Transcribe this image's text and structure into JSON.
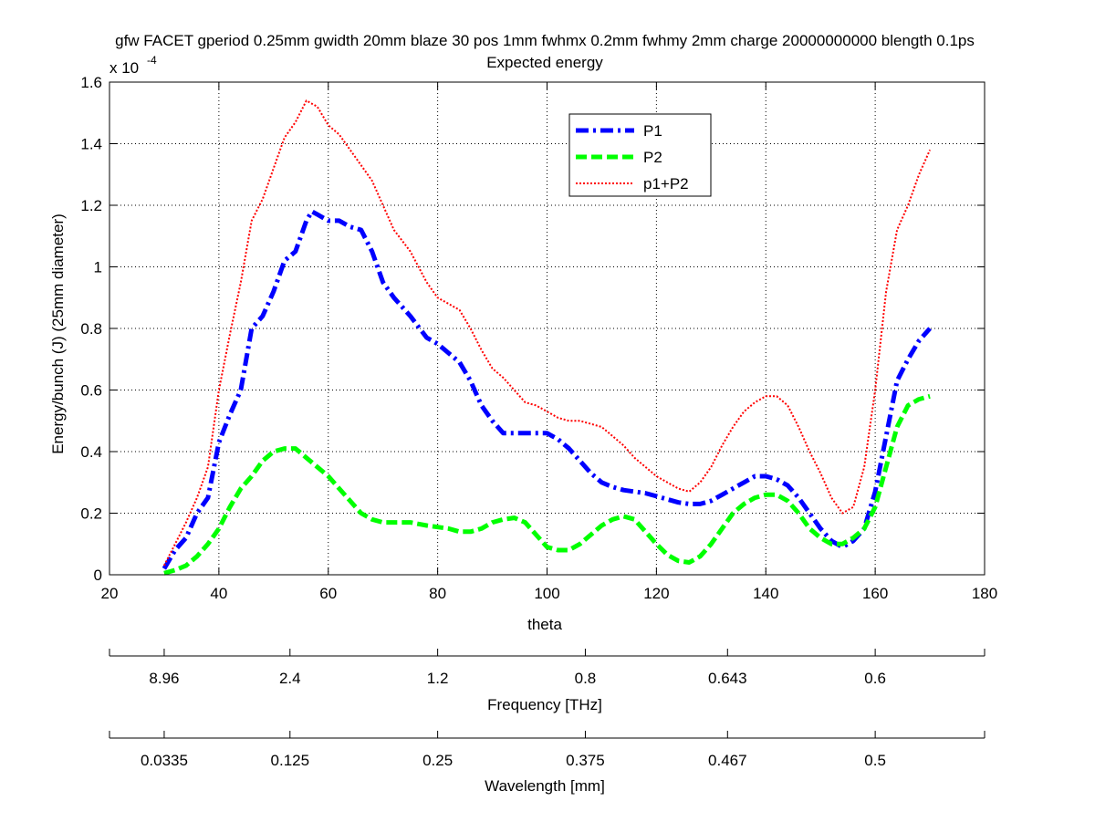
{
  "chart_data": {
    "type": "line",
    "title": "gfw FACET gperiod 0.25mm gwidth 20mm blaze 30 pos 1mm fwhmx 0.2mm fwhmy 2mm charge 20000000000 blength 0.1ps",
    "subtitle": "Expected energy",
    "xlabel": "theta",
    "ylabel": "Energy/bunch (J) (25mm diameter)",
    "y_multiplier_base": "x 10",
    "y_multiplier_exp": "-4",
    "xlim": [
      20,
      180
    ],
    "ylim": [
      0,
      1.6
    ],
    "xticks": [
      20,
      40,
      60,
      80,
      100,
      120,
      140,
      160,
      180
    ],
    "yticks": [
      0,
      0.2,
      0.4,
      0.6,
      0.8,
      1,
      1.2,
      1.4,
      1.6
    ],
    "ytick_labels": [
      "0",
      "0.2",
      "0.4",
      "0.6",
      "0.8",
      "1",
      "1.2",
      "1.4",
      "1.6"
    ],
    "grid": true,
    "legend_position": "top-center",
    "series": [
      {
        "name": "P1",
        "color": "#0000ff",
        "style": "dashdot",
        "x": [
          30,
          32,
          34,
          36,
          38,
          40,
          42,
          44,
          46,
          48,
          50,
          52,
          54,
          56,
          57,
          58,
          60,
          62,
          64,
          66,
          68,
          70,
          72,
          75,
          78,
          80,
          82,
          84,
          86,
          88,
          90,
          92,
          94,
          96,
          98,
          100,
          102,
          104,
          106,
          108,
          110,
          112,
          114,
          116,
          118,
          120,
          122,
          124,
          126,
          128,
          130,
          132,
          134,
          136,
          138,
          140,
          142,
          144,
          146,
          148,
          150,
          152,
          154,
          156,
          158,
          160,
          162,
          164,
          166,
          168,
          170
        ],
        "y": [
          0.02,
          0.08,
          0.12,
          0.2,
          0.25,
          0.43,
          0.52,
          0.6,
          0.8,
          0.84,
          0.92,
          1.02,
          1.05,
          1.15,
          1.18,
          1.17,
          1.15,
          1.15,
          1.13,
          1.12,
          1.05,
          0.95,
          0.9,
          0.84,
          0.77,
          0.75,
          0.72,
          0.69,
          0.63,
          0.55,
          0.5,
          0.46,
          0.46,
          0.46,
          0.46,
          0.46,
          0.44,
          0.41,
          0.37,
          0.33,
          0.3,
          0.285,
          0.275,
          0.27,
          0.265,
          0.255,
          0.245,
          0.235,
          0.23,
          0.23,
          0.24,
          0.26,
          0.28,
          0.3,
          0.32,
          0.32,
          0.31,
          0.29,
          0.25,
          0.2,
          0.15,
          0.11,
          0.09,
          0.11,
          0.15,
          0.27,
          0.45,
          0.63,
          0.7,
          0.76,
          0.8
        ]
      },
      {
        "name": "P2",
        "color": "#00ff00",
        "style": "dashed",
        "x": [
          30,
          32,
          34,
          36,
          38,
          40,
          42,
          44,
          46,
          48,
          50,
          52,
          54,
          56,
          58,
          60,
          62,
          64,
          66,
          68,
          70,
          72,
          75,
          78,
          80,
          82,
          84,
          86,
          88,
          90,
          92,
          94,
          96,
          98,
          100,
          102,
          104,
          106,
          108,
          110,
          112,
          114,
          116,
          118,
          120,
          122,
          124,
          126,
          128,
          130,
          132,
          134,
          136,
          138,
          140,
          142,
          144,
          146,
          148,
          150,
          152,
          154,
          156,
          158,
          160,
          162,
          164,
          166,
          168,
          170
        ],
        "y": [
          0.005,
          0.015,
          0.03,
          0.06,
          0.1,
          0.15,
          0.22,
          0.28,
          0.32,
          0.37,
          0.4,
          0.41,
          0.41,
          0.38,
          0.35,
          0.32,
          0.28,
          0.24,
          0.2,
          0.18,
          0.17,
          0.17,
          0.17,
          0.16,
          0.155,
          0.15,
          0.14,
          0.14,
          0.15,
          0.17,
          0.18,
          0.185,
          0.17,
          0.13,
          0.09,
          0.08,
          0.08,
          0.1,
          0.13,
          0.16,
          0.18,
          0.19,
          0.18,
          0.14,
          0.1,
          0.065,
          0.045,
          0.04,
          0.06,
          0.1,
          0.15,
          0.2,
          0.23,
          0.25,
          0.26,
          0.26,
          0.24,
          0.2,
          0.15,
          0.12,
          0.1,
          0.1,
          0.12,
          0.15,
          0.22,
          0.35,
          0.48,
          0.55,
          0.57,
          0.58
        ]
      },
      {
        "name": "p1+P2",
        "color": "#ff0000",
        "style": "dotted",
        "x": [
          30,
          32,
          34,
          36,
          38,
          40,
          42,
          44,
          46,
          48,
          50,
          52,
          54,
          56,
          58,
          60,
          62,
          64,
          66,
          68,
          70,
          72,
          75,
          78,
          80,
          82,
          84,
          86,
          88,
          90,
          92,
          94,
          96,
          98,
          100,
          102,
          104,
          106,
          108,
          110,
          112,
          114,
          116,
          118,
          120,
          122,
          124,
          126,
          128,
          130,
          132,
          134,
          136,
          138,
          140,
          142,
          144,
          146,
          148,
          150,
          152,
          154,
          156,
          158,
          160,
          162,
          164,
          166,
          168,
          170
        ],
        "y": [
          0.03,
          0.1,
          0.17,
          0.25,
          0.35,
          0.6,
          0.78,
          0.95,
          1.15,
          1.22,
          1.32,
          1.42,
          1.47,
          1.54,
          1.52,
          1.46,
          1.43,
          1.38,
          1.33,
          1.28,
          1.2,
          1.12,
          1.05,
          0.95,
          0.9,
          0.88,
          0.86,
          0.8,
          0.73,
          0.67,
          0.64,
          0.6,
          0.56,
          0.55,
          0.53,
          0.51,
          0.5,
          0.5,
          0.49,
          0.48,
          0.45,
          0.42,
          0.38,
          0.35,
          0.32,
          0.3,
          0.28,
          0.27,
          0.3,
          0.35,
          0.42,
          0.48,
          0.53,
          0.56,
          0.58,
          0.58,
          0.55,
          0.48,
          0.4,
          0.33,
          0.25,
          0.2,
          0.22,
          0.35,
          0.6,
          0.92,
          1.12,
          1.2,
          1.3,
          1.38
        ]
      }
    ],
    "secondary_axes": [
      {
        "label": "Frequency [THz]",
        "ticks_x": [
          30,
          53,
          80,
          107,
          133,
          160
        ],
        "tick_labels": [
          "8.96",
          "2.4",
          "1.2",
          "0.8",
          "0.643",
          "0.6"
        ]
      },
      {
        "label": "Wavelength [mm]",
        "ticks_x": [
          30,
          53,
          80,
          107,
          133,
          160
        ],
        "tick_labels": [
          "0.0335",
          "0.125",
          "0.25",
          "0.375",
          "0.467",
          "0.5"
        ]
      }
    ]
  }
}
